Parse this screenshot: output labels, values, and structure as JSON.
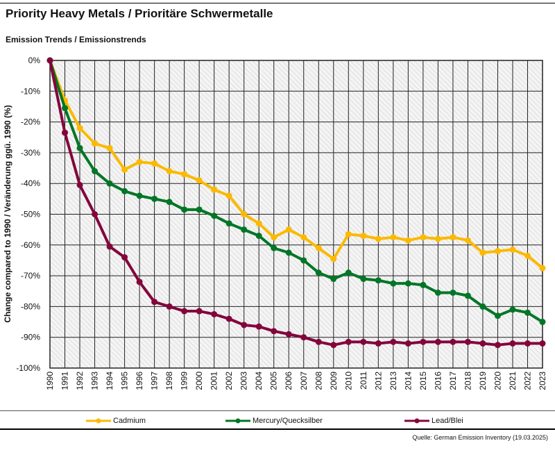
{
  "title": "Priority Heavy Metals / Prioritäre Schwermetalle",
  "subtitle": "Emission Trends / Emissionstrends",
  "source": "Quelle: German Emission Inventory (19.03.2025)",
  "chart_data": {
    "type": "line",
    "ylabel": "Change compared to 1990 / Veränderung ggü. 1990 (%)",
    "xlabel": "",
    "ylim": [
      -100,
      0
    ],
    "yticks": [
      "0%",
      "-10%",
      "-20%",
      "-30%",
      "-40%",
      "-50%",
      "-60%",
      "-70%",
      "-80%",
      "-90%",
      "-100%"
    ],
    "grid": true,
    "legend": "bottom",
    "x": [
      1990,
      1991,
      1992,
      1993,
      1994,
      1995,
      1996,
      1997,
      1998,
      1999,
      2000,
      2001,
      2002,
      2003,
      2004,
      2005,
      2006,
      2007,
      2008,
      2009,
      2010,
      2011,
      2012,
      2013,
      2014,
      2015,
      2016,
      2017,
      2018,
      2019,
      2020,
      2021,
      2022,
      2023
    ],
    "series": [
      {
        "name": "Cadmium",
        "color": "#fbb900",
        "values": [
          0,
          -13,
          -22,
          -27,
          -28.5,
          -35.5,
          -33,
          -33.5,
          -36,
          -37,
          -39,
          -42,
          -44,
          -50,
          -53,
          -57.5,
          -55,
          -57.5,
          -61,
          -64.5,
          -56.5,
          -57,
          -58,
          -57.5,
          -58.5,
          -57.5,
          -58,
          -57.5,
          -58.5,
          -62.5,
          -62,
          -61.5,
          -63.5,
          -67.5
        ]
      },
      {
        "name": "Mercury/Quecksilber",
        "color": "#007626",
        "values": [
          0,
          -15.5,
          -28.5,
          -36,
          -40,
          -42.5,
          -44,
          -45,
          -46,
          -48.5,
          -48.5,
          -50.5,
          -53,
          -55,
          -57,
          -61,
          -62.5,
          -65,
          -69,
          -71,
          -69,
          -71,
          -71.5,
          -72.5,
          -72.5,
          -73,
          -75.5,
          -75.5,
          -76.5,
          -80,
          -83,
          -81,
          -82,
          -85
        ]
      },
      {
        "name": "Lead/Blei",
        "color": "#83053c",
        "values": [
          0,
          -23.5,
          -40.5,
          -50,
          -60.5,
          -64,
          -72,
          -78.5,
          -80,
          -81.5,
          -81.5,
          -82.5,
          -84,
          -86,
          -86.5,
          -88,
          -89,
          -90,
          -91.5,
          -92.5,
          -91.5,
          -91.5,
          -92,
          -91.5,
          -92,
          -91.5,
          -91.5,
          -91.5,
          -91.5,
          -92,
          -92.5,
          -92,
          -92,
          -92
        ]
      }
    ]
  }
}
